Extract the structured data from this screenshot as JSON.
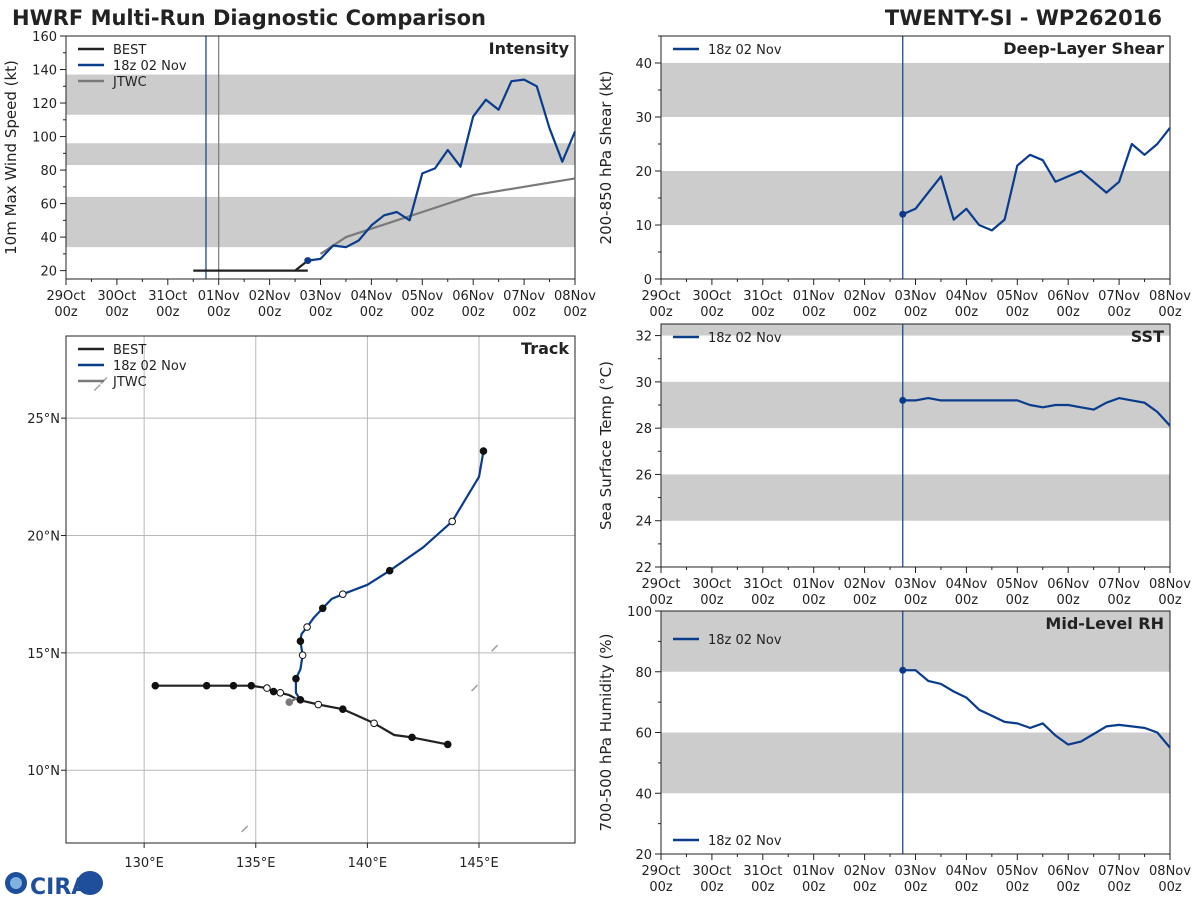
{
  "header": {
    "left_title": "HWRF Multi-Run Diagnostic Comparison",
    "right_title": "TWENTY-SI - WP262016"
  },
  "logo": {
    "text": "CIRA"
  },
  "colors": {
    "best": "#222222",
    "run": "#0b3c8c",
    "jtwc": "#7a7a7a",
    "band": "#cccccc"
  },
  "time_ticks": [
    {
      "top": "29Oct",
      "bottom": "00z"
    },
    {
      "top": "30Oct",
      "bottom": "00z"
    },
    {
      "top": "31Oct",
      "bottom": "00z"
    },
    {
      "top": "01Nov",
      "bottom": "00z"
    },
    {
      "top": "02Nov",
      "bottom": "00z"
    },
    {
      "top": "03Nov",
      "bottom": "00z"
    },
    {
      "top": "04Nov",
      "bottom": "00z"
    },
    {
      "top": "05Nov",
      "bottom": "00z"
    },
    {
      "top": "06Nov",
      "bottom": "00z"
    },
    {
      "top": "07Nov",
      "bottom": "00z"
    },
    {
      "top": "08Nov",
      "bottom": "00z"
    }
  ],
  "chart_data": [
    {
      "id": "intensity",
      "type": "line",
      "title": "Intensity",
      "ylabel": "10m Max Wind Speed (kt)",
      "xlabel": "",
      "xlim": [
        0,
        10
      ],
      "ylim": [
        15,
        160
      ],
      "yticks": [
        20,
        40,
        60,
        80,
        100,
        120,
        140,
        160
      ],
      "bands": [
        [
          34,
          64
        ],
        [
          83,
          96
        ],
        [
          113,
          137
        ]
      ],
      "vlines": [
        {
          "x": 2.75,
          "color": "run"
        },
        {
          "x": 3.0,
          "color": "jtwc"
        }
      ],
      "legend": [
        {
          "label": "BEST",
          "color": "best"
        },
        {
          "label": "18z 02 Nov",
          "color": "run"
        },
        {
          "label": "JTWC",
          "color": "jtwc"
        }
      ],
      "series": [
        {
          "name": "BEST",
          "color": "best",
          "x": [
            2.5,
            3.5,
            4.5,
            4.75
          ],
          "y": [
            20,
            20,
            20,
            20
          ]
        },
        {
          "name": "BEST",
          "color": "best",
          "x": [
            4.5,
            4.75
          ],
          "y": [
            20,
            26
          ]
        },
        {
          "name": "JTWC",
          "color": "jtwc",
          "x": [
            5.0,
            5.5,
            6.0,
            6.5,
            7.0,
            8.0,
            9.0,
            10.0
          ],
          "y": [
            30,
            40,
            45,
            50,
            55,
            65,
            70,
            75
          ]
        },
        {
          "name": "18z 02 Nov",
          "color": "run",
          "marker_first": true,
          "x": [
            4.75,
            5.0,
            5.25,
            5.5,
            5.75,
            6.0,
            6.25,
            6.5,
            6.75,
            7.0,
            7.25,
            7.5,
            7.75,
            8.0,
            8.25,
            8.5,
            8.75,
            9.0,
            9.25,
            9.5,
            9.75,
            10.0
          ],
          "y": [
            26,
            27,
            35,
            34,
            38,
            47,
            53,
            55,
            50,
            78,
            81,
            92,
            82,
            112,
            122,
            116,
            133,
            134,
            130,
            105,
            85,
            103
          ]
        }
      ]
    },
    {
      "id": "shear",
      "type": "line",
      "title": "Deep-Layer Shear",
      "ylabel": "200-850 hPa Shear (kt)",
      "xlabel": "",
      "xlim": [
        0,
        10
      ],
      "ylim": [
        0,
        45
      ],
      "yticks": [
        0,
        10,
        20,
        30,
        40
      ],
      "bands": [
        [
          10,
          20
        ],
        [
          30,
          40
        ]
      ],
      "vlines": [
        {
          "x": 4.75,
          "color": "run"
        }
      ],
      "legend": [
        {
          "label": "18z 02 Nov",
          "color": "run"
        }
      ],
      "series": [
        {
          "name": "18z 02 Nov",
          "color": "run",
          "marker_first": true,
          "x": [
            4.75,
            5.0,
            5.25,
            5.5,
            5.75,
            6.0,
            6.25,
            6.5,
            6.75,
            7.0,
            7.25,
            7.5,
            7.75,
            8.0,
            8.25,
            8.5,
            8.75,
            9.0,
            9.25,
            9.5,
            9.75,
            10.0
          ],
          "y": [
            12,
            13,
            16,
            19,
            11,
            13,
            10,
            9,
            11,
            21,
            23,
            22,
            18,
            19,
            20,
            18,
            16,
            18,
            25,
            23,
            25,
            28
          ]
        }
      ]
    },
    {
      "id": "sst",
      "type": "line",
      "title": "SST",
      "ylabel": "Sea Surface Temp (°C)",
      "xlabel": "",
      "xlim": [
        0,
        10
      ],
      "ylim": [
        22,
        32.5
      ],
      "yticks": [
        22,
        24,
        26,
        28,
        30,
        32
      ],
      "bands": [
        [
          24,
          26
        ],
        [
          28,
          30
        ],
        [
          32,
          32.5
        ]
      ],
      "vlines": [
        {
          "x": 4.75,
          "color": "run"
        }
      ],
      "legend": [
        {
          "label": "18z 02 Nov",
          "color": "run"
        }
      ],
      "series": [
        {
          "name": "18z 02 Nov",
          "color": "run",
          "marker_first": true,
          "x": [
            4.75,
            5.0,
            5.25,
            5.5,
            5.75,
            6.0,
            6.25,
            6.5,
            6.75,
            7.0,
            7.25,
            7.5,
            7.75,
            8.0,
            8.25,
            8.5,
            8.75,
            9.0,
            9.25,
            9.5,
            9.75,
            10.0
          ],
          "y": [
            29.2,
            29.2,
            29.3,
            29.2,
            29.2,
            29.2,
            29.2,
            29.2,
            29.2,
            29.2,
            29.0,
            28.9,
            29.0,
            29.0,
            28.9,
            28.8,
            29.1,
            29.3,
            29.2,
            29.1,
            28.7,
            28.1
          ]
        }
      ]
    },
    {
      "id": "rh",
      "type": "line",
      "title": "Mid-Level RH",
      "ylabel": "700-500 hPa Humidity (%)",
      "xlabel": "",
      "xlim": [
        0,
        10
      ],
      "ylim": [
        20,
        100
      ],
      "yticks": [
        20,
        40,
        60,
        80,
        100
      ],
      "bands": [
        [
          40,
          60
        ],
        [
          80,
          100
        ]
      ],
      "vlines": [
        {
          "x": 4.75,
          "color": "run"
        }
      ],
      "legend": [
        {
          "label": "18z 02 Nov",
          "color": "run"
        }
      ],
      "series": [
        {
          "name": "18z 02 Nov",
          "color": "run",
          "marker_first": true,
          "x": [
            4.75,
            5.0,
            5.25,
            5.5,
            5.75,
            6.0,
            6.25,
            6.5,
            6.75,
            7.0,
            7.25,
            7.5,
            7.75,
            8.0,
            8.25,
            8.5,
            8.75,
            9.0,
            9.25,
            9.5,
            9.75,
            10.0
          ],
          "y": [
            80.5,
            80.5,
            77,
            76,
            73.5,
            71.5,
            67.5,
            65.5,
            63.5,
            63,
            61.5,
            63,
            59,
            56,
            57,
            59.5,
            62,
            62.5,
            62,
            61.5,
            60,
            55
          ]
        }
      ]
    },
    {
      "id": "track",
      "type": "scatter",
      "title": "Track",
      "xlabel": "",
      "ylabel": "",
      "xlim": [
        126.5,
        149.3
      ],
      "ylim": [
        6.9,
        28.5
      ],
      "xticks": [
        {
          "v": 130,
          "label": "130°E"
        },
        {
          "v": 135,
          "label": "135°E"
        },
        {
          "v": 140,
          "label": "140°E"
        },
        {
          "v": 145,
          "label": "145°E"
        }
      ],
      "yticks": [
        {
          "v": 10,
          "label": "10°N"
        },
        {
          "v": 15,
          "label": "15°N"
        },
        {
          "v": 20,
          "label": "20°N"
        },
        {
          "v": 25,
          "label": "25°N"
        }
      ],
      "legend": [
        {
          "label": "BEST",
          "color": "best"
        },
        {
          "label": "18z 02 Nov",
          "color": "run"
        },
        {
          "label": "JTWC",
          "color": "jtwc"
        }
      ],
      "series": [
        {
          "name": "BEST",
          "color": "best",
          "lon": [
            143.6,
            142.0,
            141.2,
            140.3,
            139.5,
            138.9,
            137.8,
            136.9,
            136.7,
            136.5,
            136.1,
            135.8,
            135.5,
            134.8,
            134.0,
            132.8,
            130.5
          ],
          "lat": [
            11.1,
            11.4,
            11.5,
            12.0,
            12.35,
            12.6,
            12.8,
            13.0,
            13.1,
            13.2,
            13.3,
            13.35,
            13.5,
            13.6,
            13.6,
            13.6,
            13.6
          ],
          "markers": [
            {
              "i": 0,
              "fill": "filled"
            },
            {
              "i": 1,
              "fill": "filled"
            },
            {
              "i": 3,
              "fill": "open"
            },
            {
              "i": 5,
              "fill": "filled"
            },
            {
              "i": 6,
              "fill": "open"
            },
            {
              "i": 10,
              "fill": "open"
            },
            {
              "i": 11,
              "fill": "filled"
            },
            {
              "i": 12,
              "fill": "open"
            },
            {
              "i": 13,
              "fill": "filled"
            },
            {
              "i": 14,
              "fill": "filled"
            },
            {
              "i": 15,
              "fill": "filled"
            },
            {
              "i": 16,
              "fill": "filled"
            }
          ]
        },
        {
          "name": "JTWC",
          "color": "jtwc",
          "lon": [
            136.5,
            136.9
          ],
          "lat": [
            12.9,
            13.1
          ],
          "markers": [
            {
              "i": 0,
              "fill": "filled"
            }
          ]
        },
        {
          "name": "18z 02 Nov",
          "color": "run",
          "lon": [
            137.0,
            136.8,
            136.8,
            137.0,
            137.1,
            137.0,
            137.05,
            137.3,
            137.6,
            138.0,
            138.4,
            138.9,
            140.0,
            141.0,
            142.5,
            143.8,
            145.0,
            145.2
          ],
          "lat": [
            13.0,
            13.3,
            13.9,
            14.3,
            14.9,
            15.5,
            15.8,
            16.1,
            16.5,
            16.9,
            17.3,
            17.5,
            17.9,
            18.5,
            19.5,
            20.6,
            22.5,
            23.6
          ],
          "markers": [
            {
              "i": 0,
              "fill": "filled"
            },
            {
              "i": 2,
              "fill": "filled"
            },
            {
              "i": 4,
              "fill": "open"
            },
            {
              "i": 5,
              "fill": "filled"
            },
            {
              "i": 7,
              "fill": "open"
            },
            {
              "i": 9,
              "fill": "filled"
            },
            {
              "i": 11,
              "fill": "open"
            },
            {
              "i": 13,
              "fill": "filled"
            },
            {
              "i": 15,
              "fill": "open"
            },
            {
              "i": 17,
              "fill": "filled"
            }
          ]
        }
      ]
    }
  ]
}
